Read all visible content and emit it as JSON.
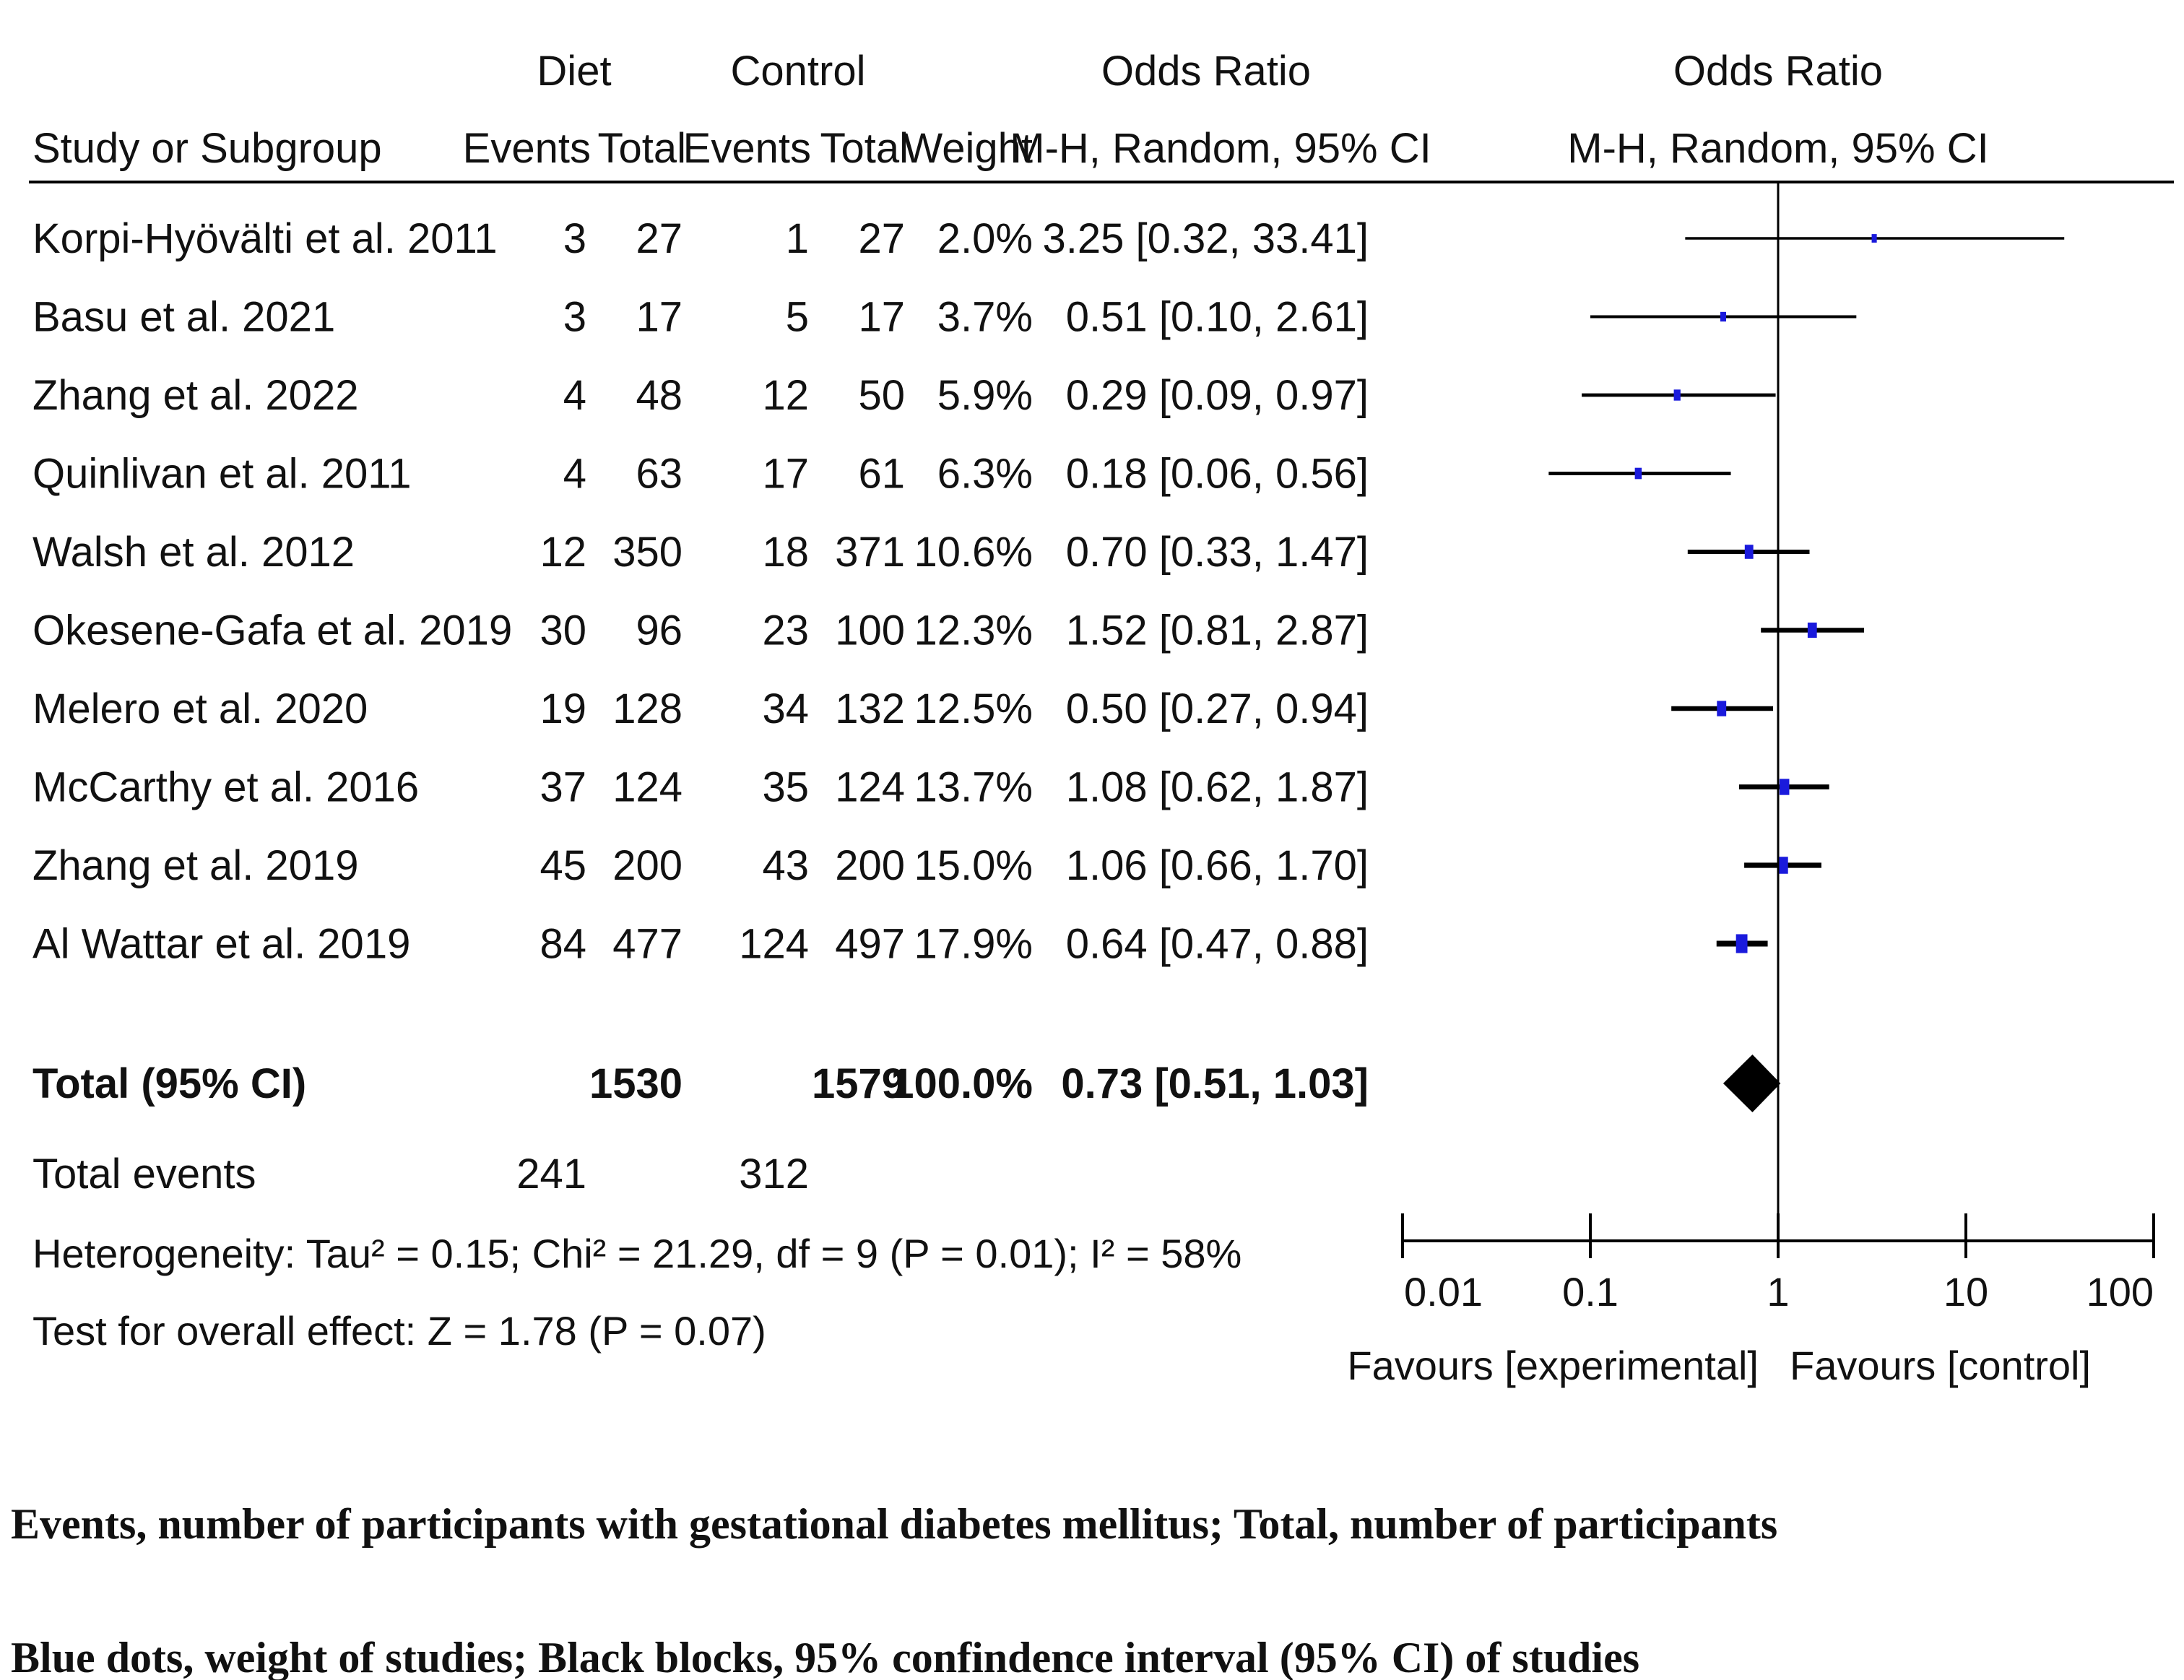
{
  "chart_data": {
    "type": "forest",
    "scale": "log",
    "xlim": [
      0.01,
      100
    ],
    "ticks": [
      "0.01",
      "0.1",
      "1",
      "10",
      "100"
    ],
    "tick_values": [
      0.01,
      0.1,
      1,
      10,
      100
    ],
    "header": {
      "group1": "Diet",
      "group2": "Control",
      "or_label": "Odds Ratio",
      "method": "M-H, Random, 95% CI",
      "plot_or_label": "Odds Ratio",
      "plot_method": "M-H, Random, 95% CI",
      "col_study": "Study or Subgroup",
      "col_events1": "Events",
      "col_total1": "Total",
      "col_events2": "Events",
      "col_total2": "Total",
      "col_weight": "Weight"
    },
    "studies": [
      {
        "study": "Korpi-Hyövälti et al. 2011",
        "e1": "3",
        "t1": "27",
        "e2": "1",
        "t2": "27",
        "weight": "2.0%",
        "ci_text": "3.25 [0.32, 33.41]",
        "or": 3.25,
        "lo": 0.32,
        "hi": 33.41,
        "w": 2.0
      },
      {
        "study": "Basu et al. 2021",
        "e1": "3",
        "t1": "17",
        "e2": "5",
        "t2": "17",
        "weight": "3.7%",
        "ci_text": "0.51 [0.10, 2.61]",
        "or": 0.51,
        "lo": 0.1,
        "hi": 2.61,
        "w": 3.7
      },
      {
        "study": "Zhang et al. 2022",
        "e1": "4",
        "t1": "48",
        "e2": "12",
        "t2": "50",
        "weight": "5.9%",
        "ci_text": "0.29 [0.09, 0.97]",
        "or": 0.29,
        "lo": 0.09,
        "hi": 0.97,
        "w": 5.9
      },
      {
        "study": "Quinlivan et al. 2011",
        "e1": "4",
        "t1": "63",
        "e2": "17",
        "t2": "61",
        "weight": "6.3%",
        "ci_text": "0.18 [0.06, 0.56]",
        "or": 0.18,
        "lo": 0.06,
        "hi": 0.56,
        "w": 6.3
      },
      {
        "study": "Walsh et al. 2012",
        "e1": "12",
        "t1": "350",
        "e2": "18",
        "t2": "371",
        "weight": "10.6%",
        "ci_text": "0.70 [0.33, 1.47]",
        "or": 0.7,
        "lo": 0.33,
        "hi": 1.47,
        "w": 10.6
      },
      {
        "study": "Okesene-Gafa et al. 2019",
        "e1": "30",
        "t1": "96",
        "e2": "23",
        "t2": "100",
        "weight": "12.3%",
        "ci_text": "1.52 [0.81, 2.87]",
        "or": 1.52,
        "lo": 0.81,
        "hi": 2.87,
        "w": 12.3
      },
      {
        "study": "Melero et al. 2020",
        "e1": "19",
        "t1": "128",
        "e2": "34",
        "t2": "132",
        "weight": "12.5%",
        "ci_text": "0.50 [0.27, 0.94]",
        "or": 0.5,
        "lo": 0.27,
        "hi": 0.94,
        "w": 12.5
      },
      {
        "study": "McCarthy et al. 2016",
        "e1": "37",
        "t1": "124",
        "e2": "35",
        "t2": "124",
        "weight": "13.7%",
        "ci_text": "1.08 [0.62, 1.87]",
        "or": 1.08,
        "lo": 0.62,
        "hi": 1.87,
        "w": 13.7
      },
      {
        "study": "Zhang et al. 2019",
        "e1": "45",
        "t1": "200",
        "e2": "43",
        "t2": "200",
        "weight": "15.0%",
        "ci_text": "1.06 [0.66, 1.70]",
        "or": 1.06,
        "lo": 0.66,
        "hi": 1.7,
        "w": 15.0
      },
      {
        "study": "Al Wattar et al. 2019",
        "e1": "84",
        "t1": "477",
        "e2": "124",
        "t2": "497",
        "weight": "17.9%",
        "ci_text": "0.64 [0.47, 0.88]",
        "or": 0.64,
        "lo": 0.47,
        "hi": 0.88,
        "w": 17.9
      }
    ],
    "total": {
      "label": "Total (95% CI)",
      "t1": "1530",
      "t2": "1579",
      "weight": "100.0%",
      "ci_text": "0.73 [0.51, 1.03]",
      "or": 0.73,
      "lo": 0.51,
      "hi": 1.03
    },
    "total_events": {
      "label": "Total events",
      "e1": "241",
      "e2": "312"
    },
    "heterogeneity": "Heterogeneity: Tau² = 0.15; Chi² = 21.29, df = 9 (P = 0.01); I² = 58%",
    "overall_effect": "Test for overall effect: Z = 1.78 (P = 0.07)",
    "favours_left": "Favours [experimental]",
    "favours_right": "Favours [control]",
    "colors": {
      "marker": "#1a1adc",
      "line": "#000000",
      "text": "#111111"
    }
  },
  "captions": {
    "line1": "Events, number of participants with gestational diabetes mellitus; Total, number of participants",
    "line2": "Blue dots, weight of studies; Black blocks, 95% confindence interval (95% CI) of studies"
  }
}
